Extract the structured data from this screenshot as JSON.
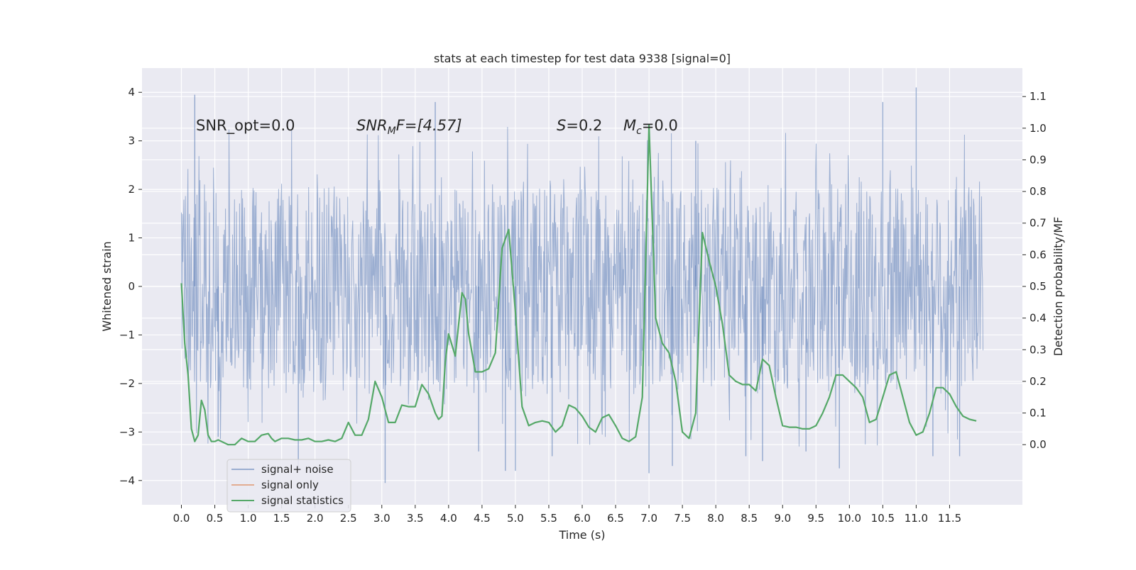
{
  "chart_data": {
    "type": "line",
    "title": "stats at each timestep for test data 9338 [signal=0]",
    "xlabel": "Time (s)",
    "ylabel_left": "Whitened strain",
    "ylabel_right": "Detection probability/MF",
    "xlim": [
      -0.59,
      12.59
    ],
    "ylim_left": [
      -4.5,
      4.5
    ],
    "ylim_right": [
      -0.19,
      1.19
    ],
    "x_ticks": [
      "0.0",
      "0.5",
      "1.0",
      "1.5",
      "2.0",
      "2.5",
      "3.0",
      "3.5",
      "4.0",
      "4.5",
      "5.0",
      "5.5",
      "6.0",
      "6.5",
      "7.0",
      "7.5",
      "8.0",
      "8.5",
      "9.0",
      "9.5",
      "10.0",
      "10.5",
      "11.0",
      "11.5"
    ],
    "y_ticks_left": [
      "4",
      "3",
      "2",
      "1",
      "0",
      "−1",
      "−2",
      "−3",
      "−4"
    ],
    "y_ticks_right": [
      "1.1",
      "1.0",
      "0.9",
      "0.8",
      "0.7",
      "0.6",
      "0.5",
      "0.4",
      "0.3",
      "0.2",
      "0.1",
      "0.0"
    ],
    "grid": true,
    "annotations": {
      "snr_opt": "SNR_opt=0.0",
      "snr_mf_base": "SNR",
      "snr_mf_sub": "M",
      "snr_mf_rest": "F=[4.57]",
      "s_base": "S",
      "s_rest": "=0.2",
      "mc_base": "M",
      "mc_sub": "c",
      "mc_rest": "=0.0"
    },
    "legend": {
      "placement": "lower-left",
      "entries": [
        "signal+ noise",
        "signal only",
        "signal statistics"
      ]
    },
    "series": [
      {
        "name": "signal+ noise",
        "axis": "left",
        "color": "#4c72b0",
        "x_range": [
          0.0,
          12.0
        ],
        "envelope": {
          "core_band": [
            -1.9,
            1.9
          ],
          "max": 4.1,
          "min": -4.1
        },
        "peaks": [
          {
            "x": 0.2,
            "y": 3.95
          },
          {
            "x": 0.55,
            "y": -3.1
          },
          {
            "x": 1.75,
            "y": -3.8
          },
          {
            "x": 3.05,
            "y": -4.05
          },
          {
            "x": 3.8,
            "y": 3.8
          },
          {
            "x": 4.45,
            "y": -3.4
          },
          {
            "x": 4.85,
            "y": -3.8
          },
          {
            "x": 5.0,
            "y": -3.8
          },
          {
            "x": 5.55,
            "y": -3.5
          },
          {
            "x": 7.0,
            "y": -3.85
          },
          {
            "x": 7.35,
            "y": -3.7
          },
          {
            "x": 7.7,
            "y": 3.0
          },
          {
            "x": 8.45,
            "y": -3.5
          },
          {
            "x": 8.7,
            "y": -3.6
          },
          {
            "x": 9.35,
            "y": -3.4
          },
          {
            "x": 9.85,
            "y": -3.75
          },
          {
            "x": 10.5,
            "y": 3.8
          },
          {
            "x": 11.0,
            "y": 4.1
          },
          {
            "x": 11.25,
            "y": -3.5
          },
          {
            "x": 11.65,
            "y": -3.5
          }
        ]
      },
      {
        "name": "signal only",
        "axis": "left",
        "color": "#dd8452",
        "values": []
      },
      {
        "name": "signal statistics",
        "axis": "right",
        "color": "#55a868",
        "x": [
          0.0,
          0.05,
          0.1,
          0.15,
          0.2,
          0.25,
          0.3,
          0.35,
          0.4,
          0.45,
          0.5,
          0.55,
          0.6,
          0.7,
          0.8,
          0.9,
          1.0,
          1.1,
          1.2,
          1.3,
          1.35,
          1.4,
          1.5,
          1.6,
          1.7,
          1.8,
          1.9,
          2.0,
          2.1,
          2.2,
          2.3,
          2.4,
          2.5,
          2.6,
          2.7,
          2.8,
          2.9,
          3.0,
          3.05,
          3.1,
          3.2,
          3.3,
          3.4,
          3.5,
          3.6,
          3.7,
          3.8,
          3.85,
          3.9,
          3.95,
          4.0,
          4.1,
          4.2,
          4.25,
          4.3,
          4.4,
          4.5,
          4.6,
          4.7,
          4.8,
          4.9,
          5.0,
          5.1,
          5.2,
          5.3,
          5.4,
          5.5,
          5.6,
          5.7,
          5.8,
          5.9,
          6.0,
          6.1,
          6.2,
          6.3,
          6.4,
          6.5,
          6.6,
          6.7,
          6.8,
          6.9,
          7.0,
          7.1,
          7.2,
          7.3,
          7.4,
          7.5,
          7.6,
          7.7,
          7.8,
          7.9,
          8.0,
          8.1,
          8.2,
          8.3,
          8.4,
          8.5,
          8.6,
          8.7,
          8.8,
          8.9,
          9.0,
          9.1,
          9.2,
          9.3,
          9.4,
          9.5,
          9.6,
          9.7,
          9.8,
          9.9,
          10.0,
          10.1,
          10.2,
          10.3,
          10.4,
          10.5,
          10.6,
          10.7,
          10.8,
          10.9,
          11.0,
          11.1,
          11.2,
          11.3,
          11.4,
          11.5,
          11.6,
          11.7,
          11.8,
          11.9
        ],
        "values": [
          0.51,
          0.32,
          0.22,
          0.05,
          0.01,
          0.03,
          0.14,
          0.11,
          0.03,
          0.01,
          0.01,
          0.015,
          0.01,
          0.0,
          0.0,
          0.02,
          0.01,
          0.01,
          0.03,
          0.035,
          0.02,
          0.01,
          0.02,
          0.02,
          0.015,
          0.015,
          0.02,
          0.01,
          0.01,
          0.015,
          0.01,
          0.02,
          0.07,
          0.03,
          0.03,
          0.08,
          0.2,
          0.15,
          0.11,
          0.07,
          0.07,
          0.125,
          0.12,
          0.12,
          0.19,
          0.16,
          0.1,
          0.08,
          0.09,
          0.26,
          0.35,
          0.28,
          0.48,
          0.46,
          0.35,
          0.23,
          0.23,
          0.24,
          0.29,
          0.62,
          0.68,
          0.42,
          0.12,
          0.06,
          0.07,
          0.075,
          0.07,
          0.04,
          0.06,
          0.125,
          0.115,
          0.09,
          0.055,
          0.04,
          0.085,
          0.095,
          0.06,
          0.02,
          0.01,
          0.025,
          0.15,
          1.01,
          0.4,
          0.32,
          0.29,
          0.2,
          0.04,
          0.02,
          0.1,
          0.67,
          0.58,
          0.5,
          0.38,
          0.22,
          0.2,
          0.19,
          0.19,
          0.17,
          0.27,
          0.25,
          0.15,
          0.06,
          0.055,
          0.055,
          0.05,
          0.05,
          0.06,
          0.1,
          0.15,
          0.22,
          0.22,
          0.2,
          0.18,
          0.15,
          0.07,
          0.08,
          0.15,
          0.22,
          0.23,
          0.15,
          0.07,
          0.03,
          0.04,
          0.1,
          0.18,
          0.18,
          0.16,
          0.12,
          0.09,
          0.08,
          0.075
        ]
      }
    ]
  }
}
